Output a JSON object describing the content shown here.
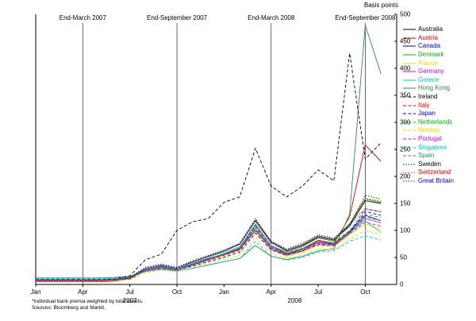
{
  "figure": {
    "footnote1": "*Individual bank premia weighted by total assets.",
    "footnote2": "Sources: Bloomberg and Markit."
  },
  "chart_data": {
    "type": "line",
    "title": "",
    "ylabel": "Basis points",
    "ylim": [
      0,
      500
    ],
    "ytick_step": 50,
    "xlim": [
      0,
      23
    ],
    "x_unit": "months from Jan 2007",
    "x_ticks": [
      {
        "label": "Jan",
        "x": 0
      },
      {
        "label": "Apr",
        "x": 3
      },
      {
        "label": "Jul",
        "x": 6
      },
      {
        "label": "Oct",
        "x": 9
      },
      {
        "label": "Jan",
        "x": 12
      },
      {
        "label": "Apr",
        "x": 15
      },
      {
        "label": "Jul",
        "x": 18
      },
      {
        "label": "Oct",
        "x": 21
      }
    ],
    "year_labels": [
      {
        "label": "2007",
        "x": 6
      },
      {
        "label": "2008",
        "x": 16.5
      }
    ],
    "vlines": [
      {
        "label": "End-March 2007",
        "x": 3
      },
      {
        "label": "End-September 2007",
        "x": 9
      },
      {
        "label": "End-March 2008",
        "x": 15
      },
      {
        "label": "End-September 2008",
        "x": 21
      }
    ],
    "legend_position": "right",
    "series": [
      {
        "name": "Australia",
        "color": "#000000",
        "dash": "solid",
        "values": [
          7,
          7,
          7,
          7,
          7,
          8,
          12,
          30,
          35,
          30,
          42,
          52,
          62,
          75,
          118,
          78,
          62,
          72,
          88,
          82,
          108,
          155,
          150
        ]
      },
      {
        "name": "Austria",
        "color": "#e00000",
        "dash": "solid",
        "values": [
          5,
          5,
          5,
          5,
          5,
          6,
          10,
          26,
          30,
          26,
          36,
          46,
          56,
          66,
          112,
          72,
          56,
          66,
          82,
          76,
          125,
          258,
          228
        ]
      },
      {
        "name": "Canada",
        "color": "#0000d0",
        "dash": "solid",
        "values": [
          8,
          8,
          8,
          8,
          8,
          9,
          12,
          28,
          33,
          28,
          38,
          48,
          56,
          66,
          100,
          68,
          56,
          66,
          78,
          75,
          98,
          128,
          118
        ]
      },
      {
        "name": "Denmark",
        "color": "#00b200",
        "dash": "solid",
        "values": [
          6,
          6,
          6,
          6,
          6,
          7,
          11,
          27,
          32,
          27,
          37,
          47,
          57,
          68,
          110,
          72,
          60,
          70,
          86,
          80,
          112,
          158,
          152
        ]
      },
      {
        "name": "France",
        "color": "#e0e000",
        "dash": "solid",
        "values": [
          6,
          6,
          6,
          6,
          6,
          7,
          10,
          25,
          30,
          26,
          35,
          44,
          52,
          62,
          98,
          64,
          52,
          60,
          72,
          70,
          92,
          112,
          102
        ]
      },
      {
        "name": "Germany",
        "color": "#e600e6",
        "dash": "solid",
        "values": [
          7,
          7,
          7,
          7,
          7,
          8,
          11,
          27,
          32,
          27,
          36,
          46,
          55,
          65,
          105,
          68,
          56,
          64,
          78,
          74,
          96,
          122,
          114
        ]
      },
      {
        "name": "Greece",
        "color": "#00c8c8",
        "dash": "solid",
        "values": [
          10,
          10,
          10,
          10,
          10,
          11,
          14,
          30,
          36,
          30,
          40,
          50,
          60,
          70,
          112,
          72,
          58,
          66,
          80,
          76,
          96,
          118,
          96
        ]
      },
      {
        "name": "Hong Kong",
        "color": "#2e8b57",
        "dash": "solid",
        "values": [
          12,
          12,
          12,
          12,
          12,
          13,
          15,
          24,
          28,
          25,
          30,
          36,
          42,
          48,
          72,
          52,
          46,
          52,
          62,
          66,
          130,
          480,
          390
        ]
      },
      {
        "name": "Ireland",
        "color": "#000000",
        "dash": "dashed",
        "values": [
          10,
          10,
          10,
          10,
          10,
          11,
          16,
          46,
          56,
          100,
          116,
          122,
          152,
          162,
          252,
          182,
          162,
          182,
          212,
          192,
          428,
          232,
          262
        ]
      },
      {
        "name": "Italy",
        "color": "#e00000",
        "dash": "dashed",
        "values": [
          6,
          6,
          6,
          6,
          6,
          7,
          10,
          26,
          31,
          27,
          36,
          46,
          55,
          66,
          108,
          70,
          57,
          66,
          80,
          76,
          98,
          140,
          135
        ]
      },
      {
        "name": "Japan",
        "color": "#0000d0",
        "dash": "dashed",
        "values": [
          9,
          9,
          9,
          9,
          9,
          10,
          12,
          26,
          30,
          27,
          34,
          42,
          50,
          60,
          95,
          64,
          54,
          62,
          74,
          72,
          95,
          135,
          128
        ]
      },
      {
        "name": "Netherlands",
        "color": "#00b200",
        "dash": "dashed",
        "values": [
          7,
          7,
          7,
          7,
          7,
          8,
          11,
          26,
          31,
          27,
          36,
          45,
          54,
          64,
          102,
          67,
          55,
          63,
          76,
          73,
          95,
          125,
          118
        ]
      },
      {
        "name": "Norway",
        "color": "#e0e000",
        "dash": "dashed",
        "values": [
          6,
          6,
          6,
          6,
          6,
          7,
          9,
          22,
          27,
          24,
          31,
          39,
          46,
          55,
          88,
          58,
          48,
          55,
          66,
          64,
          84,
          100,
          92
        ]
      },
      {
        "name": "Portugal",
        "color": "#e600e6",
        "dash": "dashed",
        "values": [
          7,
          7,
          7,
          7,
          7,
          8,
          11,
          26,
          31,
          27,
          36,
          45,
          54,
          64,
          100,
          66,
          54,
          62,
          75,
          72,
          94,
          115,
          108
        ]
      },
      {
        "name": "Singapore",
        "color": "#00c8c8",
        "dash": "dashed",
        "values": [
          10,
          10,
          10,
          10,
          10,
          11,
          13,
          24,
          28,
          25,
          30,
          36,
          42,
          48,
          80,
          52,
          45,
          50,
          60,
          62,
          80,
          90,
          82
        ]
      },
      {
        "name": "Spain",
        "color": "#2e8b57",
        "dash": "dashed",
        "values": [
          8,
          8,
          8,
          8,
          8,
          9,
          12,
          28,
          33,
          28,
          38,
          47,
          56,
          67,
          108,
          70,
          58,
          67,
          80,
          77,
          100,
          130,
          124
        ]
      },
      {
        "name": "Sweden",
        "color": "#000000",
        "dash": "dotted",
        "values": [
          8,
          8,
          8,
          8,
          8,
          9,
          12,
          30,
          36,
          30,
          42,
          52,
          62,
          74,
          118,
          78,
          64,
          74,
          90,
          84,
          110,
          165,
          158
        ]
      },
      {
        "name": "Switzerland",
        "color": "#e00000",
        "dash": "dotted",
        "values": [
          7,
          7,
          7,
          7,
          7,
          8,
          12,
          30,
          36,
          31,
          42,
          52,
          62,
          74,
          120,
          80,
          64,
          74,
          90,
          84,
          112,
          160,
          154
        ]
      },
      {
        "name": "Great Britain",
        "color": "#0000d0",
        "dash": "dotted",
        "values": [
          8,
          8,
          8,
          8,
          8,
          9,
          13,
          32,
          38,
          32,
          44,
          54,
          64,
          76,
          122,
          80,
          66,
          76,
          92,
          86,
          112,
          140,
          134
        ]
      }
    ]
  }
}
